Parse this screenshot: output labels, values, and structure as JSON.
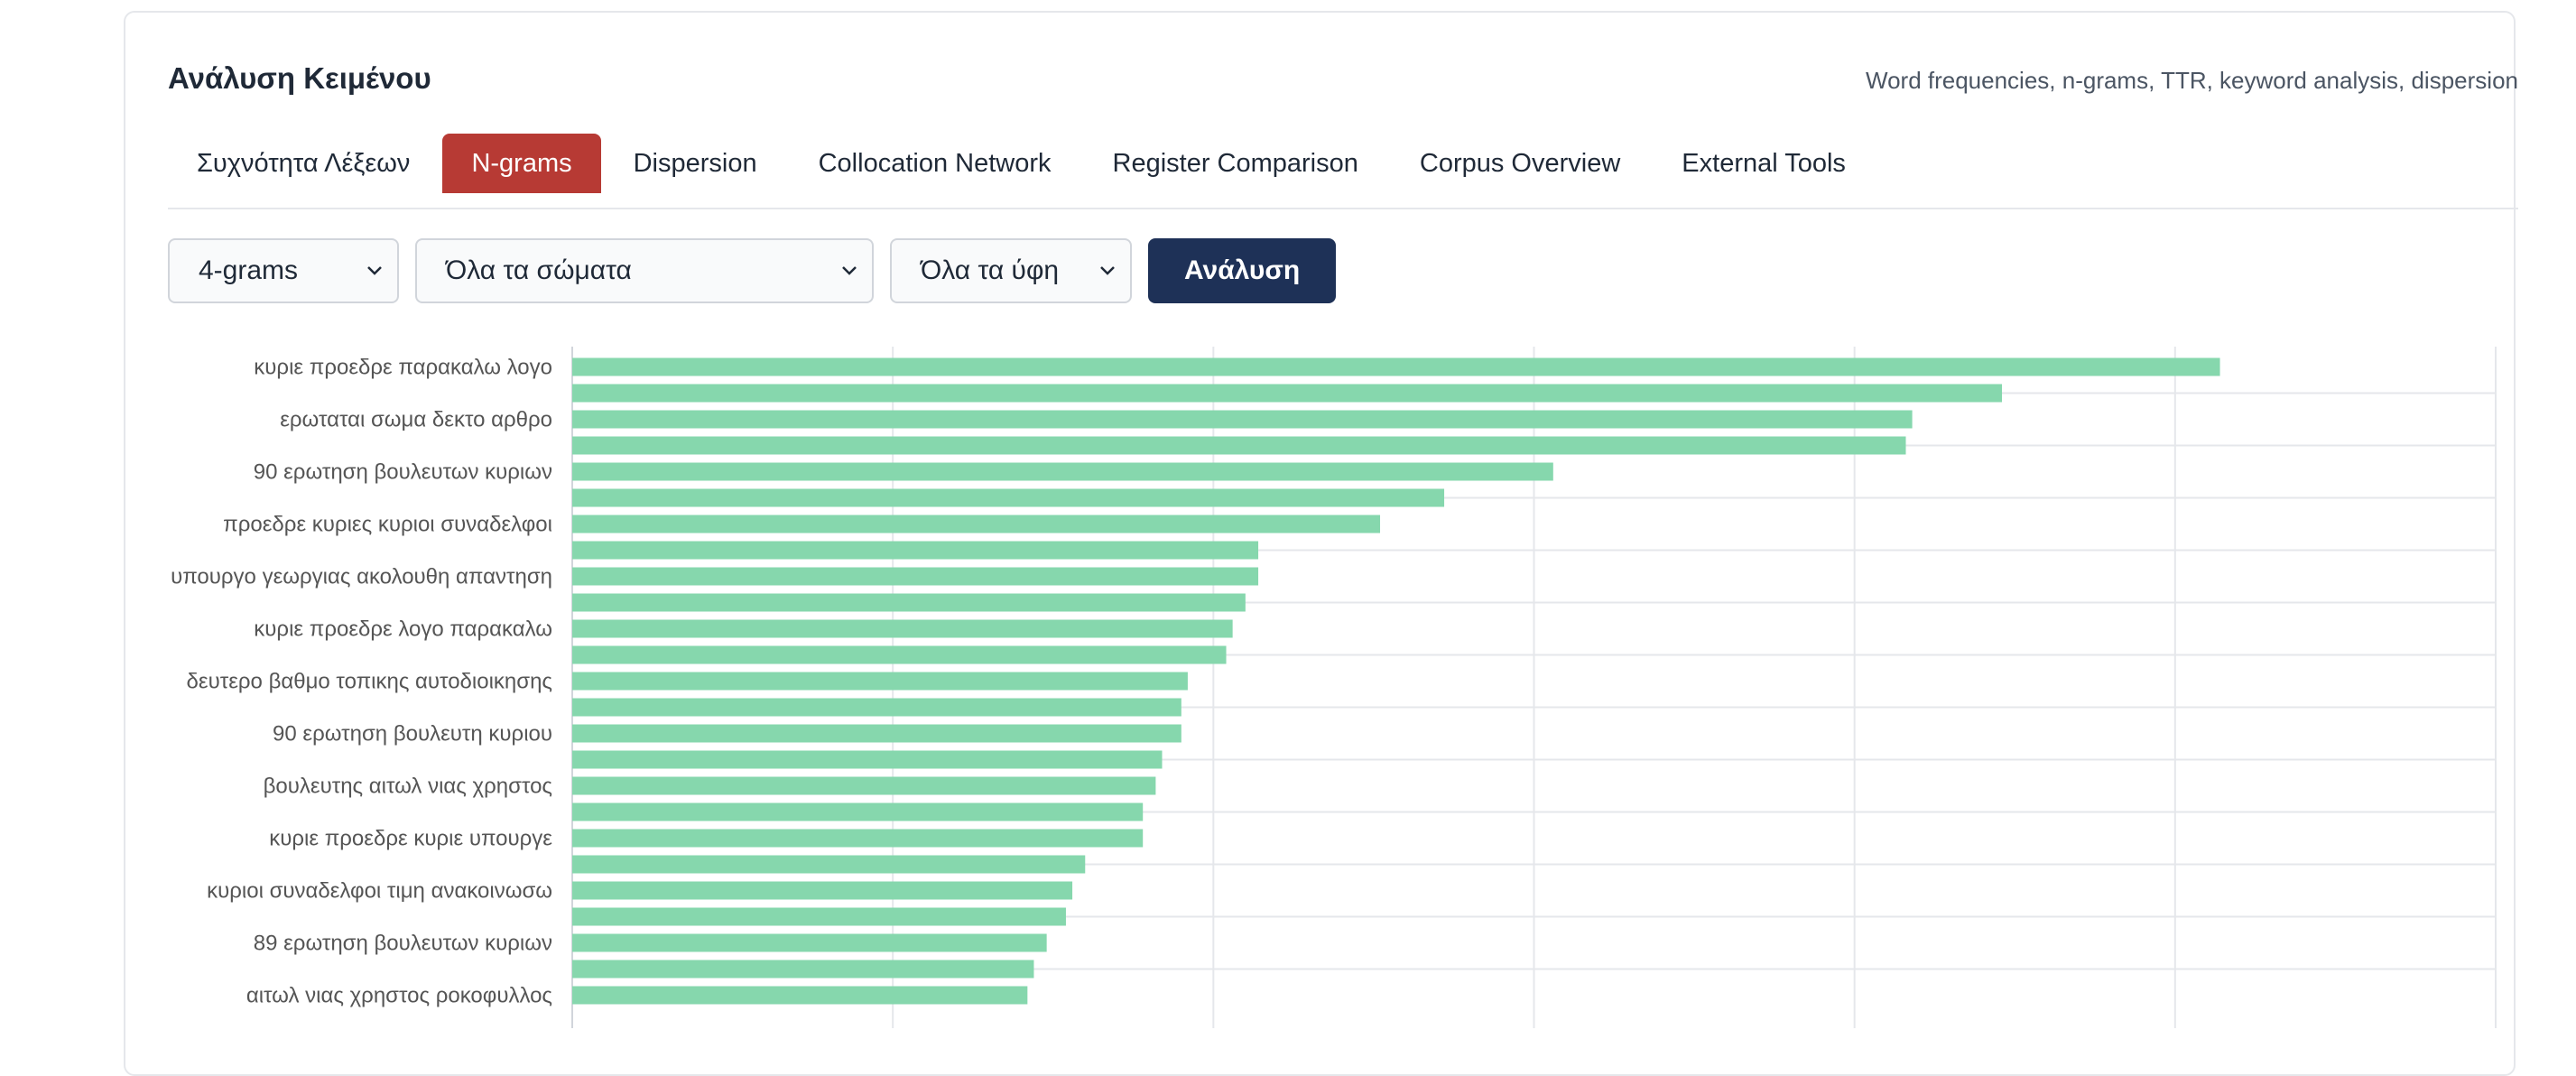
{
  "header": {
    "title": "Ανάλυση Κειμένου",
    "subtitle": "Word frequencies, n-grams, TTR, keyword analysis, dispersion"
  },
  "tabs": [
    {
      "label": "Συχνότητα Λέξεων",
      "active": false
    },
    {
      "label": "N-grams",
      "active": true
    },
    {
      "label": "Dispersion",
      "active": false
    },
    {
      "label": "Collocation Network",
      "active": false
    },
    {
      "label": "Register Comparison",
      "active": false
    },
    {
      "label": "Corpus Overview",
      "active": false
    },
    {
      "label": "External Tools",
      "active": false
    }
  ],
  "controls": {
    "ngram_select": "4-grams",
    "corpus_select": "Όλα τα σώματα",
    "register_select": "Όλα τα ύφη",
    "analyze_button": "Ανάλυση"
  },
  "colors": {
    "accent_tab": "#b73a34",
    "button": "#1e3157",
    "bar": "#86d7ad"
  },
  "chart_data": {
    "type": "bar",
    "orientation": "horizontal",
    "categories": [
      "κυριε προεδρε παρακαλω λογο",
      "",
      "ερωταται σωμα δεκτο αρθρο",
      "",
      "90 ερωτηση βουλευτων κυριων",
      "",
      "προεδρε κυριες κυριοι συναδελφοι",
      "",
      "υπουργο γεωργιας ακολουθη απαντηση",
      "",
      "κυριε προεδρε λογο παρακαλω",
      "",
      "δευτερο βαθμο τοπικης αυτοδιοικησης",
      "",
      "90 ερωτηση βουλευτη κυριου",
      "",
      "βουλευτης αιτωλ νιας χρηστος",
      "",
      "κυριε προεδρε κυριε υπουργε",
      "",
      "κυριοι συναδελφοι τιμη ανακοινωσω",
      "",
      "89 ερωτηση βουλευτων κυριων",
      "",
      "αιτωλ νιας χρηστος ροκοφυλλος"
    ],
    "values": [
      257,
      223,
      209,
      208,
      153,
      136,
      126,
      107,
      107,
      105,
      103,
      102,
      96,
      95,
      95,
      92,
      91,
      89,
      89,
      80,
      78,
      77,
      74,
      72,
      71
    ],
    "x_ticks": [
      0,
      50,
      100,
      150,
      200,
      250,
      300
    ],
    "xlim": [
      0,
      300
    ],
    "grid": true
  }
}
